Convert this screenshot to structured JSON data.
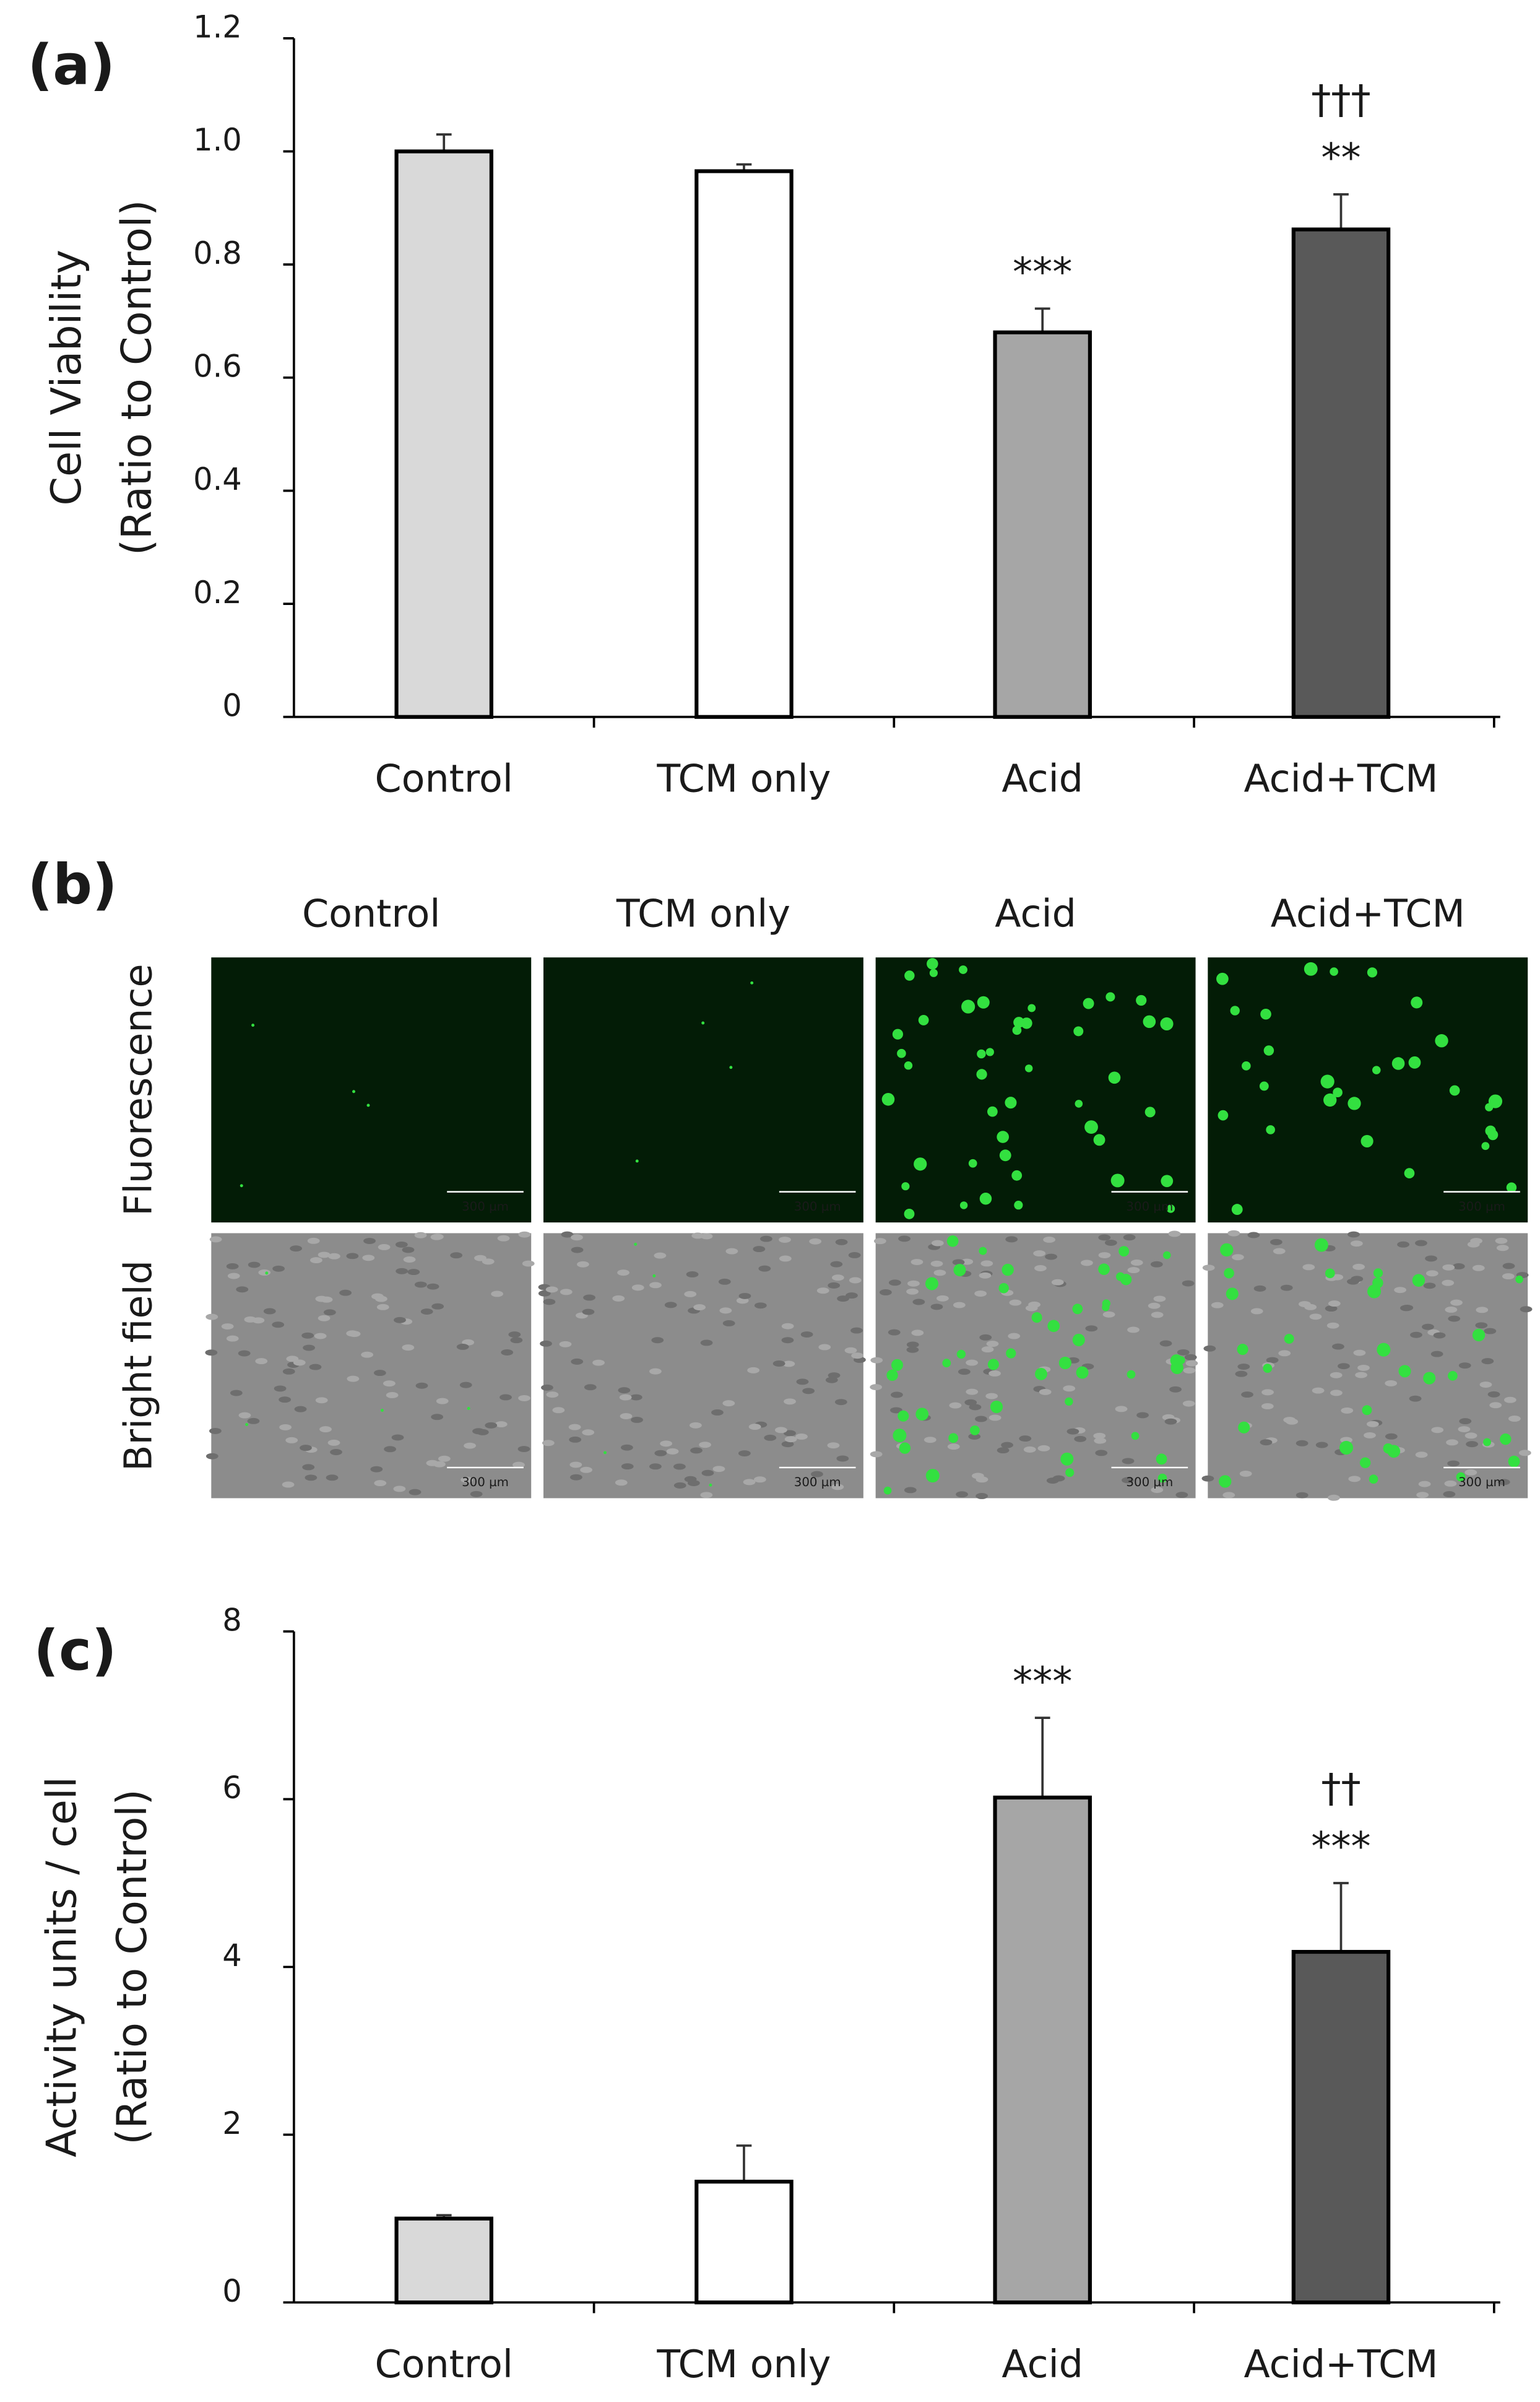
{
  "chart_data": [
    {
      "type": "bar",
      "panel_label": "(a)",
      "ylabel": [
        "Cell Viability",
        "(Ratio to Control)"
      ],
      "categories": [
        "Control",
        "TCM only",
        "Acid",
        "Acid+TCM"
      ],
      "values": [
        1.0,
        0.965,
        0.68,
        0.862
      ],
      "errors": [
        0.03,
        0.012,
        0.042,
        0.062
      ],
      "colors": [
        "#d9d9d9",
        "#ffffff",
        "#a6a6a6",
        "#595959"
      ],
      "annotations": [
        null,
        null,
        [
          "***"
        ],
        [
          "**",
          "†††"
        ]
      ],
      "ylim": [
        0,
        1.2
      ],
      "yticks": [
        0,
        0.2,
        0.4,
        0.6,
        0.8,
        {
          "value": 1,
          "label": "1.0"
        },
        1.2
      ]
    },
    {
      "type": "bar",
      "panel_label": "(c)",
      "ylabel": [
        "Activity units / cell",
        "(Ratio to Control)"
      ],
      "categories": [
        "Control",
        "TCM only",
        "Acid",
        "Acid+TCM"
      ],
      "values": [
        1.0,
        1.44,
        6.02,
        4.18
      ],
      "errors": [
        0.04,
        0.43,
        0.95,
        0.82
      ],
      "colors": [
        "#d9d9d9",
        "#ffffff",
        "#a6a6a6",
        "#595959"
      ],
      "annotations": [
        null,
        null,
        [
          "***"
        ],
        [
          "***",
          "††"
        ]
      ],
      "ylim": [
        0,
        8
      ],
      "yticks": [
        0,
        2,
        4,
        6,
        8
      ]
    }
  ],
  "panel_b": {
    "label": "(b)",
    "columns": [
      "Control",
      "TCM only",
      "Acid",
      "Acid+TCM"
    ],
    "rows": [
      "Fluorescence",
      "Bright field"
    ],
    "scale_bar": "300 µm"
  }
}
